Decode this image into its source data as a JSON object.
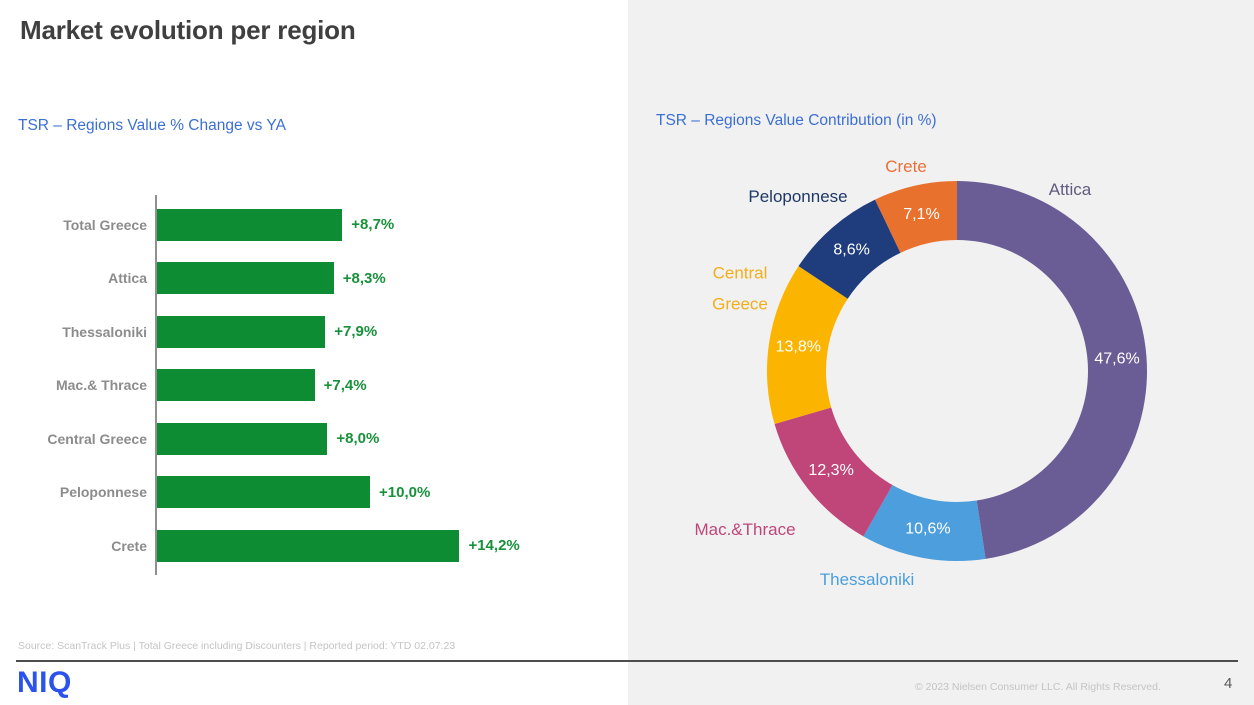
{
  "page": {
    "title": "Market evolution per region",
    "source": "Source: ScanTrack Plus | Total Greece including Discounters |  Reported period: YTD 02.07.23",
    "logo": "NIQ",
    "copyright": "© 2023 Nielsen Consumer LLC. All Rights Reserved.",
    "page_number": "4"
  },
  "colors": {
    "accent_blue": "#3c6fd4",
    "bar_green": "#0d8c34",
    "value_green": "#18913b",
    "category_gray": "#8c8c8c",
    "axis_gray": "#909090",
    "panel_gray": "#f1f1f2",
    "logo_blue": "#2b52ec",
    "footnote_gray": "#c4c4c4"
  },
  "chart_data": [
    {
      "type": "bar",
      "orientation": "horizontal",
      "title": "TSR – Regions Value % Change vs YA",
      "categories": [
        "Total Greece",
        "Attica",
        "Thessaloniki",
        "Mac.& Thrace",
        "Central Greece",
        "Peloponnese",
        "Crete"
      ],
      "values": [
        8.7,
        8.3,
        7.9,
        7.4,
        8.0,
        10.0,
        14.2
      ],
      "value_labels": [
        "+8,7%",
        "+8,3%",
        "+7,9%",
        "+7,4%",
        "+8,0%",
        "+10,0%",
        "+14,2%"
      ],
      "bar_color": "#0d8c34",
      "value_label_color": "#18913b",
      "xlim": [
        0,
        15
      ],
      "grid": false,
      "unit": "% change vs YA"
    },
    {
      "type": "pie",
      "subtype": "donut",
      "title": "TSR – Regions Value Contribution (in %)",
      "start_angle_deg_from_top": 0,
      "direction": "clockwise",
      "segments": [
        {
          "key": "attica",
          "label": "Attica",
          "value": 47.6,
          "display": "47,6%",
          "color": "#6a5c95",
          "label_color": "#615c7e"
        },
        {
          "key": "thessaloniki",
          "label": "Thessaloniki",
          "value": 10.6,
          "display": "10,6%",
          "color": "#4c9edc",
          "label_color": "#4c9edc"
        },
        {
          "key": "mac-thrace",
          "label": "Mac.&Thrace",
          "value": 12.3,
          "display": "12,3%",
          "color": "#c04679",
          "label_color": "#c04679"
        },
        {
          "key": "central-greece",
          "label": "Central Greece",
          "value": 13.8,
          "display": "13,8%",
          "color": "#fbb400",
          "label_color": "#f3ae1b"
        },
        {
          "key": "peloponnese",
          "label": "Peloponnese",
          "value": 8.6,
          "display": "8,6%",
          "color": "#1f3c7d",
          "label_color": "#1f3864"
        },
        {
          "key": "crete",
          "label": "Crete",
          "value": 7.1,
          "display": "7,1%",
          "color": "#e8712e",
          "label_color": "#e8713a"
        }
      ]
    }
  ]
}
